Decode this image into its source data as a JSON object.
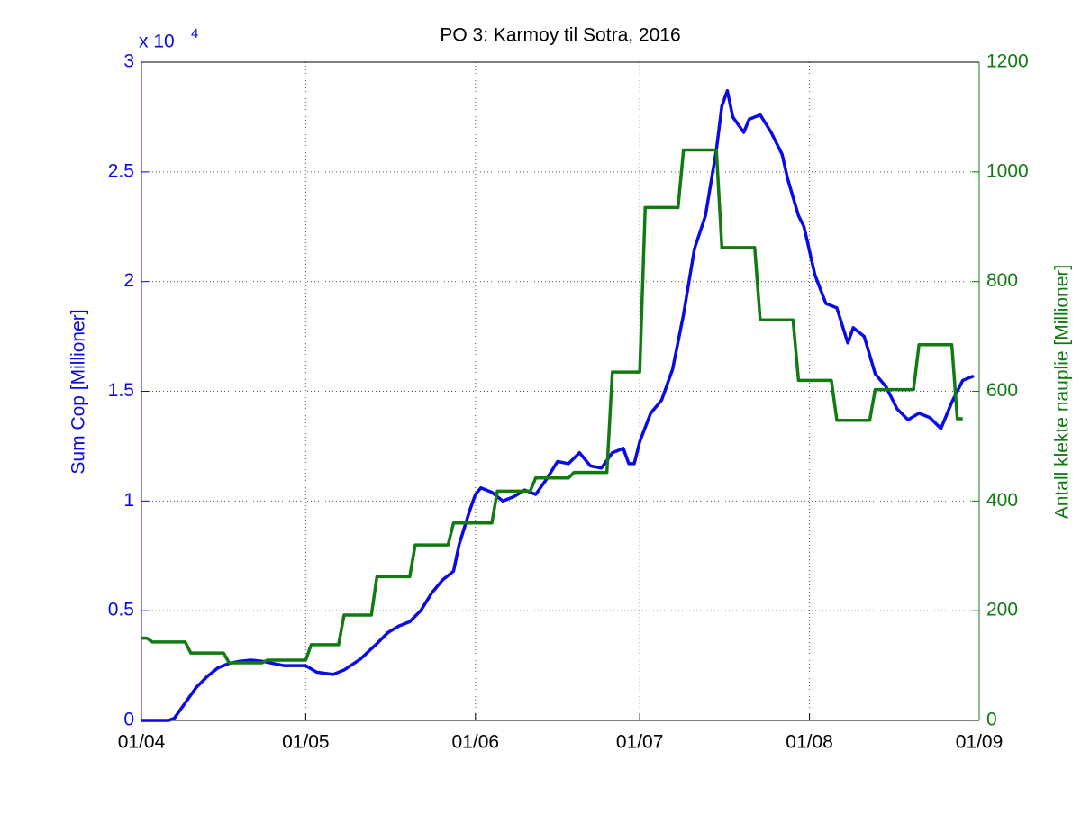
{
  "chart_data": {
    "type": "line",
    "title": "PO 3: Karmoy til Sotra, 2016",
    "y_label": "Sum Cop [Millioner]",
    "y2_label": "Antall klekte nauplie [Millioner]",
    "y_multiplier": {
      "base": "x 10",
      "exponent": "4"
    },
    "xlim": [
      "01/04",
      "01/09"
    ],
    "xticks": [
      "01/04",
      "01/05",
      "01/06",
      "01/07",
      "01/08",
      "01/09"
    ],
    "ylim": [
      0,
      3
    ],
    "yticks": [
      0,
      0.5,
      1,
      1.5,
      2,
      2.5,
      3
    ],
    "y2lim": [
      0,
      1200
    ],
    "y2ticks": [
      0,
      200,
      400,
      600,
      800,
      1000,
      1200
    ],
    "grid": true,
    "series": [
      {
        "color": "#0a0ae6",
        "axis": "y",
        "x": [
          "01/04",
          "06/04",
          "07/04",
          "09/04",
          "11/04",
          "13/04",
          "15/04",
          "17/04",
          "19/04",
          "21/04",
          "23/04",
          "27/04",
          "01/05",
          "03/05",
          "06/05",
          "08/05",
          "11/05",
          "14/05",
          "16/05",
          "18/05",
          "20/05",
          "22/05",
          "24/05",
          "26/05",
          "28/05",
          "29/05",
          "30/05",
          "31/05",
          "01/06",
          "02/06",
          "04/06",
          "06/06",
          "08/06",
          "10/06",
          "12/06",
          "14/06",
          "16/06",
          "18/06",
          "20/06",
          "22/06",
          "24/06",
          "26/06",
          "28/06",
          "29/06",
          "30/06",
          "01/07",
          "03/07",
          "05/07",
          "07/07",
          "09/07",
          "11/07",
          "13/07",
          "14/07",
          "15/07",
          "16/07",
          "17/07",
          "18/07",
          "20/07",
          "21/07",
          "23/07",
          "25/07",
          "27/07",
          "28/07",
          "30/07",
          "31/07",
          "02/08",
          "04/08",
          "06/08",
          "08/08",
          "09/08",
          "11/08",
          "13/08",
          "15/08",
          "17/08",
          "19/08",
          "21/08",
          "23/08",
          "25/08",
          "27/08",
          "29/08",
          "31/08"
        ],
        "values": [
          0,
          0,
          0.01,
          0.08,
          0.15,
          0.2,
          0.24,
          0.26,
          0.27,
          0.275,
          0.27,
          0.25,
          0.25,
          0.22,
          0.21,
          0.23,
          0.28,
          0.35,
          0.4,
          0.43,
          0.45,
          0.5,
          0.58,
          0.64,
          0.68,
          0.8,
          0.88,
          0.96,
          1.03,
          1.06,
          1.04,
          1.0,
          1.02,
          1.05,
          1.03,
          1.1,
          1.18,
          1.17,
          1.22,
          1.16,
          1.15,
          1.22,
          1.24,
          1.17,
          1.17,
          1.27,
          1.4,
          1.46,
          1.6,
          1.85,
          2.15,
          2.3,
          2.45,
          2.6,
          2.8,
          2.87,
          2.75,
          2.68,
          2.74,
          2.76,
          2.68,
          2.58,
          2.47,
          2.3,
          2.25,
          2.03,
          1.9,
          1.88,
          1.72,
          1.79,
          1.75,
          1.58,
          1.52,
          1.42,
          1.37,
          1.4,
          1.38,
          1.33,
          1.45,
          1.55,
          1.57
        ]
      },
      {
        "color": "#117a11",
        "axis": "y2",
        "x": [
          "01/04",
          "02/04",
          "03/04",
          "09/04",
          "10/04",
          "16/04",
          "17/04",
          "23/04",
          "24/04",
          "01/05",
          "02/05",
          "07/05",
          "08/05",
          "13/05",
          "14/05",
          "20/05",
          "21/05",
          "27/05",
          "28/05",
          "04/06",
          "05/06",
          "11/06",
          "12/06",
          "18/06",
          "19/06",
          "25/06",
          "26/06",
          "01/07",
          "02/07",
          "08/07",
          "09/07",
          "15/07",
          "16/07",
          "22/07",
          "23/07",
          "29/07",
          "30/07",
          "05/08",
          "06/08",
          "12/08",
          "13/08",
          "20/08",
          "21/08",
          "27/08",
          "28/08",
          "29/08"
        ],
        "values": [
          150,
          150,
          143,
          143,
          123,
          123,
          105,
          105,
          110,
          110,
          138,
          138,
          192,
          192,
          262,
          262,
          320,
          320,
          360,
          360,
          418,
          418,
          442,
          442,
          452,
          452,
          635,
          635,
          935,
          935,
          1040,
          1040,
          862,
          862,
          730,
          730,
          620,
          620,
          547,
          547,
          603,
          603,
          685,
          685,
          550,
          550
        ]
      }
    ]
  }
}
